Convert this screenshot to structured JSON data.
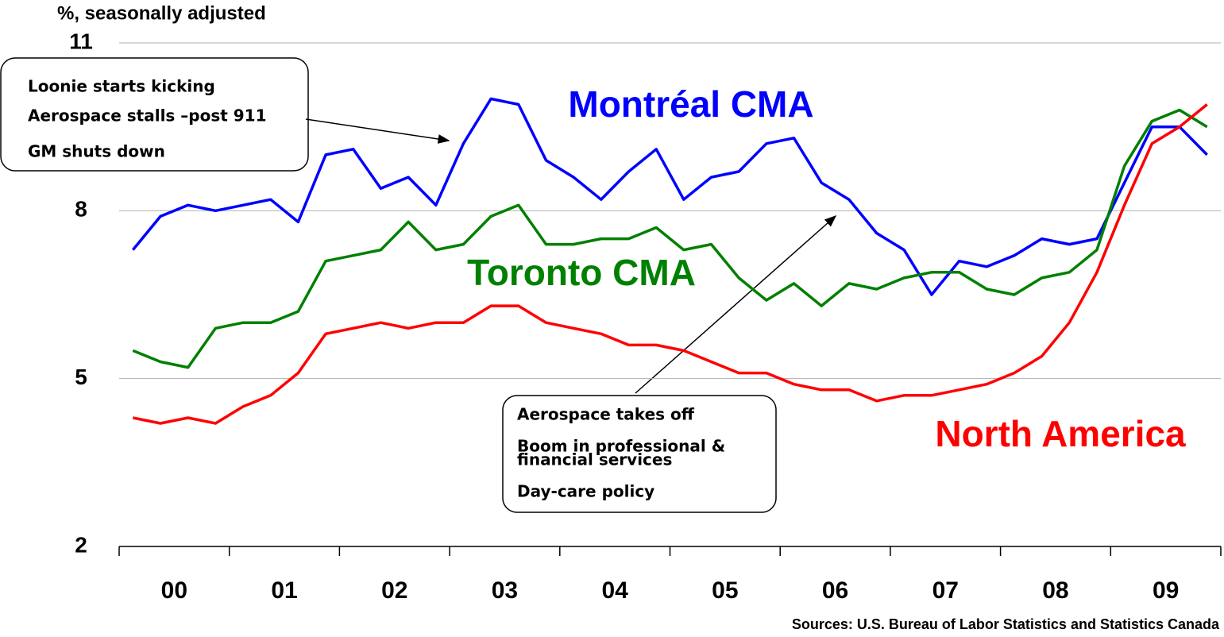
{
  "chart_data": {
    "type": "line",
    "ylabel": "%, seasonally adjusted",
    "source": "Sources: U.S. Bureau of Labor Statistics and Statistics Canada",
    "categories": [
      "00",
      null,
      null,
      null,
      "01",
      null,
      null,
      null,
      "02",
      null,
      null,
      null,
      "03",
      null,
      null,
      null,
      "04",
      null,
      null,
      null,
      "05",
      null,
      null,
      null,
      "06",
      null,
      null,
      null,
      "07",
      null,
      null,
      null,
      "08",
      null,
      null,
      null,
      "09",
      null,
      null,
      null
    ],
    "ylim": [
      2,
      11
    ],
    "yticks": [
      2,
      5,
      8,
      11
    ],
    "grid": true,
    "series": [
      {
        "name": "Montréal CMA",
        "color": "#0000ff",
        "values": [
          7.3,
          7.9,
          8.1,
          8.0,
          8.1,
          8.2,
          7.8,
          9.0,
          9.1,
          8.4,
          8.6,
          8.1,
          9.2,
          10.0,
          9.9,
          8.9,
          8.6,
          8.2,
          8.7,
          9.1,
          8.2,
          8.6,
          8.7,
          9.2,
          9.3,
          8.5,
          8.2,
          7.6,
          7.3,
          6.5,
          7.1,
          7.0,
          7.2,
          7.5,
          7.4,
          7.5,
          8.5,
          9.5,
          9.5,
          9.0
        ]
      },
      {
        "name": "Toronto CMA",
        "color": "#008000",
        "values": [
          5.5,
          5.3,
          5.2,
          5.9,
          6.0,
          6.0,
          6.2,
          7.1,
          7.2,
          7.3,
          7.8,
          7.3,
          7.4,
          7.9,
          8.1,
          7.4,
          7.4,
          7.5,
          7.5,
          7.7,
          7.3,
          7.4,
          6.8,
          6.4,
          6.7,
          6.3,
          6.7,
          6.6,
          6.8,
          6.9,
          6.9,
          6.6,
          6.5,
          6.8,
          6.9,
          7.3,
          8.8,
          9.6,
          9.8,
          9.5
        ]
      },
      {
        "name": "North America",
        "color": "#ff0000",
        "values": [
          4.3,
          4.2,
          4.3,
          4.2,
          4.5,
          4.7,
          5.1,
          5.8,
          5.9,
          6.0,
          5.9,
          6.0,
          6.0,
          6.3,
          6.3,
          6.0,
          5.9,
          5.8,
          5.6,
          5.6,
          5.5,
          5.3,
          5.1,
          5.1,
          4.9,
          4.8,
          4.8,
          4.6,
          4.7,
          4.7,
          4.8,
          4.9,
          5.1,
          5.4,
          6.0,
          6.9,
          8.1,
          9.2,
          9.5,
          9.9
        ]
      }
    ],
    "annotations": [
      {
        "lines": [
          "Loonie starts kicking",
          "Aerospace stalls –post 911",
          "GM shuts down"
        ]
      },
      {
        "lines": [
          "Aerospace takes off",
          "Boom in professional &",
          "financial services",
          "Day-care policy"
        ]
      }
    ]
  }
}
